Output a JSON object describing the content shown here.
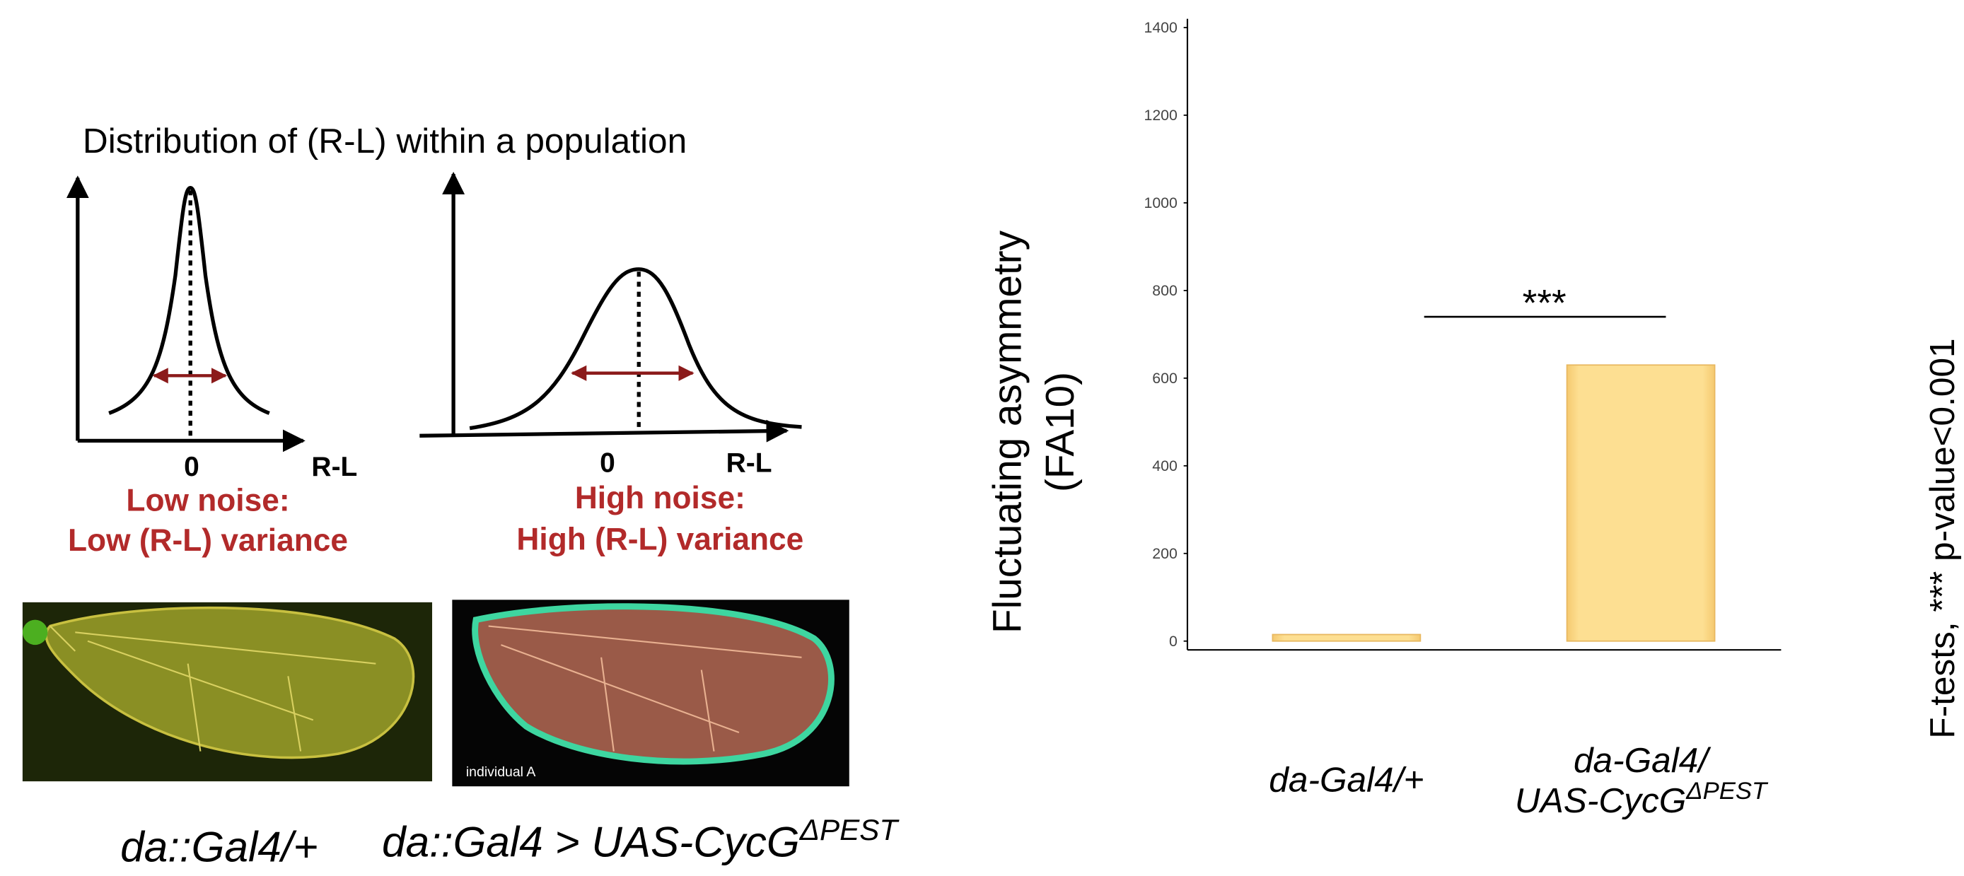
{
  "schematic": {
    "title": "Distribution of (R-L) within a population",
    "low": {
      "zero": "0",
      "axis": "R-L",
      "label": "Low noise:",
      "sublabel": "Low (R-L) variance"
    },
    "high": {
      "zero": "0",
      "axis": "R-L",
      "label": "High noise:",
      "sublabel": "High (R-L) variance"
    },
    "photo_note": "individual A",
    "captions": [
      "da::Gal4/+",
      "da::Gal4 > UAS-CycGΔPEST"
    ]
  },
  "chart_data": {
    "type": "bar",
    "ylabel": [
      "Fluctuating asymmetry",
      "(FA10)"
    ],
    "categories": [
      "da-Gal4/+",
      "da-Gal4/UAS-CycGΔPEST"
    ],
    "values": [
      15,
      630
    ],
    "color": "#fddf92",
    "ylim": [
      0,
      1400
    ],
    "yticks": [
      0,
      200,
      400,
      600,
      800,
      1000,
      1200,
      1400
    ],
    "annotation": "***",
    "footnote": "F-tests, *** p-value<0.001"
  }
}
